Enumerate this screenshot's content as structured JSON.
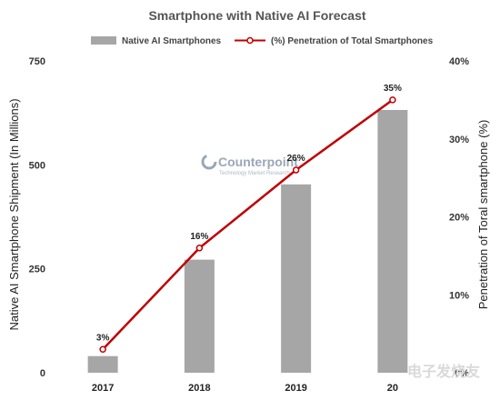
{
  "chart_data": {
    "type": "bar+line",
    "title": "Smartphone with Native AI Forecast",
    "categories": [
      "2017",
      "2018",
      "2019",
      "20"
    ],
    "series": [
      {
        "name": "Native AI Smartphones",
        "type": "bar",
        "axis": "left",
        "values": [
          40,
          272,
          453,
          632
        ],
        "color": "#a6a6a6"
      },
      {
        "name": "(%) Penetration of Total Smartphones",
        "type": "line",
        "axis": "right",
        "values": [
          3,
          16,
          26,
          35
        ],
        "labels": [
          "3%",
          "16%",
          "26%",
          "35%"
        ],
        "color": "#c00000"
      }
    ],
    "ylabel_left": "Native AI Smartphone Shipment (In Millions)",
    "ylabel_right": "Penetration of Toral smartphone (%)",
    "y_left_ticks": [
      "0",
      "250",
      "500",
      "750"
    ],
    "y_right_ticks": [
      "0%",
      "10%",
      "20%",
      "30%",
      "40%"
    ],
    "ylim_left": [
      0,
      750
    ],
    "ylim_right": [
      0,
      40
    ],
    "legend_position": "top",
    "grid": false
  },
  "watermark": {
    "brand": "Counterpoint",
    "tagline": "Technology Market Research",
    "corner": "电子发烧友"
  }
}
